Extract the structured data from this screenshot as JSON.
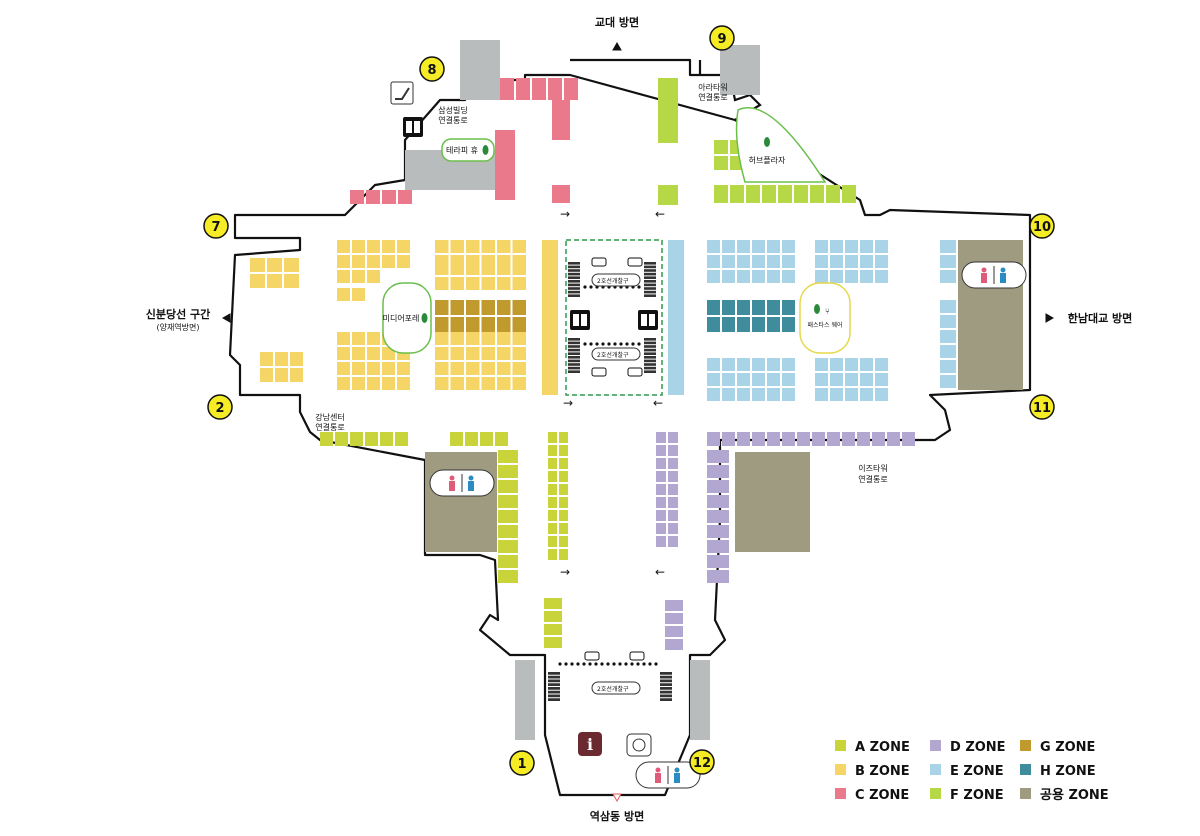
{
  "directions": {
    "top": "교대 방면",
    "bottom": "역삼동 방면",
    "left": "신분당선 구간",
    "left_sub": "(양재역방면)",
    "right": "한남대교 방면"
  },
  "connectors": {
    "samsung": [
      "삼성빌딩",
      "연결통로"
    ],
    "arara": [
      "아라타워",
      "연결통로"
    ],
    "gangnam": [
      "강남센터",
      "연결통로"
    ],
    "izz": [
      "이즈타워",
      "연결통로"
    ]
  },
  "places": {
    "terrapi": "테라피 휴",
    "herb": "허브플라자",
    "media": "미디어포레",
    "pasta": "패스타스 웨어"
  },
  "gates": {
    "upper": [
      "2호선",
      "개찰구"
    ],
    "lower": [
      "2호선",
      "개찰구"
    ],
    "bottom": [
      "2호선",
      "개찰구"
    ]
  },
  "exits": [
    "1",
    "2",
    "7",
    "8",
    "9",
    "10",
    "11",
    "12"
  ],
  "colors": {
    "A": "#c9d33a",
    "B": "#f4d565",
    "C": "#ea7a8b",
    "D": "#b1a7d1",
    "E": "#a9d3e6",
    "F": "#b6d846",
    "G": "#c19a2e",
    "H": "#3f8c9c",
    "COMMON": "#9e9b80",
    "GRAY": "#b9bcbd",
    "EXIT": "#f6ec26",
    "INFO": "#6b2a2f"
  },
  "legend": [
    {
      "key": "A",
      "label": "A ZONE"
    },
    {
      "key": "D",
      "label": "D ZONE"
    },
    {
      "key": "G",
      "label": "G ZONE"
    },
    {
      "key": "B",
      "label": "B ZONE"
    },
    {
      "key": "E",
      "label": "E ZONE"
    },
    {
      "key": "H",
      "label": "H ZONE"
    },
    {
      "key": "C",
      "label": "C ZONE"
    },
    {
      "key": "F",
      "label": "F ZONE"
    },
    {
      "key": "COMMON",
      "label": "공용 ZONE"
    }
  ]
}
